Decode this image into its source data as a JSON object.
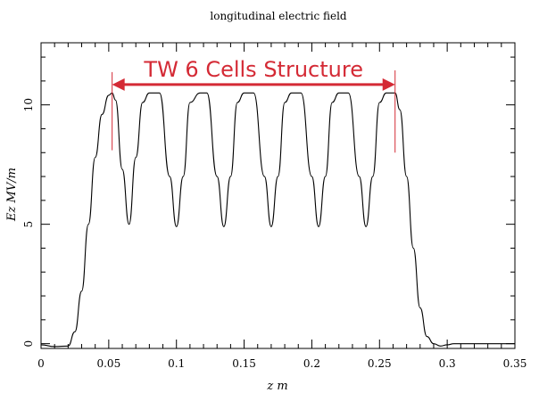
{
  "chart_data": {
    "type": "line",
    "title": "longitudinal electric field",
    "xlabel": "z m",
    "ylabel": "Ez MV/m",
    "xlim": [
      0,
      0.35
    ],
    "ylim": [
      -0.2,
      12.6
    ],
    "x_ticks": [
      0,
      0.05,
      0.1,
      0.15,
      0.2,
      0.25,
      0.3,
      0.35
    ],
    "x_tick_labels": [
      "0",
      "0.05",
      "0.1",
      "0.15",
      "0.2",
      "0.25",
      "0.3",
      "0.35"
    ],
    "y_ticks": [
      0,
      5,
      10
    ],
    "y_tick_labels": [
      "0",
      "5",
      "10"
    ],
    "grid": false,
    "series": [
      {
        "values_x": [
          0,
          0.01,
          0.02,
          0.025,
          0.03,
          0.035,
          0.04,
          0.045,
          0.05,
          0.0525,
          0.055,
          0.06,
          0.065,
          0.07,
          0.075,
          0.08,
          0.0875,
          0.095,
          0.1,
          0.105,
          0.11,
          0.1175,
          0.1225,
          0.13,
          0.135,
          0.14,
          0.145,
          0.15,
          0.157,
          0.165,
          0.17,
          0.175,
          0.18,
          0.185,
          0.192,
          0.2,
          0.205,
          0.21,
          0.215,
          0.22,
          0.227,
          0.235,
          0.24,
          0.245,
          0.25,
          0.255,
          0.2615,
          0.265,
          0.27,
          0.275,
          0.28,
          0.285,
          0.29,
          0.295,
          0.3,
          0.305,
          0.35
        ],
        "values_y": [
          -0.05,
          -0.12,
          -0.1,
          0.5,
          2.2,
          5.0,
          7.8,
          9.6,
          10.4,
          10.5,
          10.2,
          7.3,
          5.0,
          7.8,
          10.1,
          10.5,
          10.5,
          7.0,
          4.9,
          7.0,
          10.1,
          10.5,
          10.5,
          7.0,
          4.9,
          7.0,
          10.1,
          10.5,
          10.5,
          7.0,
          4.9,
          7.0,
          10.1,
          10.5,
          10.5,
          7.0,
          4.9,
          7.0,
          10.1,
          10.5,
          10.5,
          7.0,
          4.9,
          7.0,
          10.1,
          10.5,
          10.5,
          9.8,
          7.0,
          4.0,
          1.5,
          0.3,
          0.0,
          -0.1,
          -0.05,
          0.0,
          0.0
        ]
      }
    ],
    "annotation": {
      "text": "TW 6 Cells Structure",
      "color": "#d42a35",
      "x_start": 0.0525,
      "x_end": 0.2615,
      "y": 10.85
    }
  }
}
